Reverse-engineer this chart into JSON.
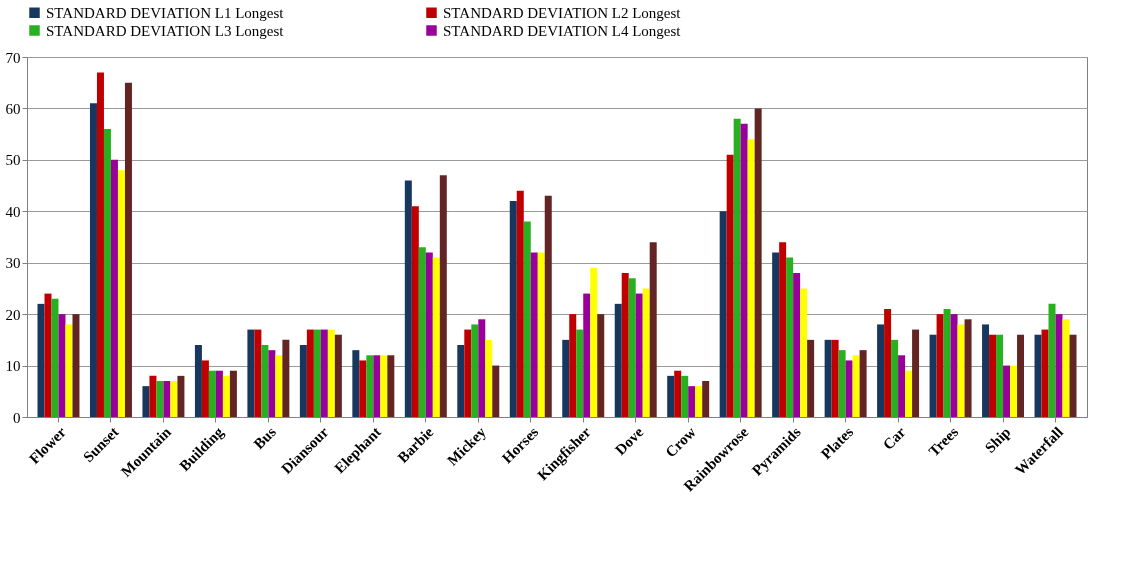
{
  "chart_data": {
    "type": "bar",
    "categories": [
      "Flower",
      "Sunset",
      "Mountain",
      "Building",
      "Bus",
      "Diansour",
      "Elephant",
      "Barbie",
      "Mickey",
      "Horses",
      "Kingfisher",
      "Dove",
      "Crow",
      "Rainbowrose",
      "Pyramids",
      "Plates",
      "Car",
      "Trees",
      "Ship",
      "Waterfall"
    ],
    "series": [
      {
        "name": "STANDARD DEVIATION L1 Longest",
        "color": "#17375e",
        "values": [
          22,
          61,
          6,
          14,
          17,
          14,
          13,
          46,
          14,
          42,
          15,
          22,
          8,
          40,
          32,
          15,
          18,
          16,
          18,
          16
        ]
      },
      {
        "name": "STANDARD DEVIATION L2 Longest",
        "color": "#c00000",
        "values": [
          24,
          67,
          8,
          11,
          17,
          17,
          11,
          41,
          17,
          44,
          20,
          28,
          9,
          51,
          34,
          15,
          21,
          20,
          16,
          17
        ]
      },
      {
        "name": "STANDARD DEVIATION L3 Longest",
        "color": "#28b020",
        "values": [
          23,
          56,
          7,
          9,
          14,
          17,
          12,
          33,
          18,
          38,
          17,
          27,
          8,
          58,
          31,
          13,
          15,
          21,
          16,
          22
        ]
      },
      {
        "name": "STANDARD DEVIATION L4 Longest",
        "color": "#990099",
        "values": [
          20,
          50,
          7,
          9,
          13,
          17,
          12,
          32,
          19,
          32,
          24,
          24,
          6,
          57,
          28,
          11,
          12,
          20,
          10,
          20
        ]
      },
      {
        "color": "#ffff00",
        "values": [
          18,
          48,
          7,
          8,
          12,
          17,
          12,
          31,
          15,
          32,
          29,
          25,
          6,
          54,
          25,
          12,
          9,
          18,
          10,
          19
        ]
      },
      {
        "color": "#632523",
        "values": [
          20,
          65,
          8,
          9,
          15,
          16,
          12,
          47,
          10,
          43,
          20,
          34,
          7,
          60,
          15,
          13,
          17,
          19,
          16,
          16
        ]
      }
    ],
    "ylim": [
      0,
      70
    ],
    "yticks": [
      0,
      10,
      20,
      30,
      40,
      50,
      60,
      70
    ],
    "grid": "y",
    "legend": "top"
  }
}
